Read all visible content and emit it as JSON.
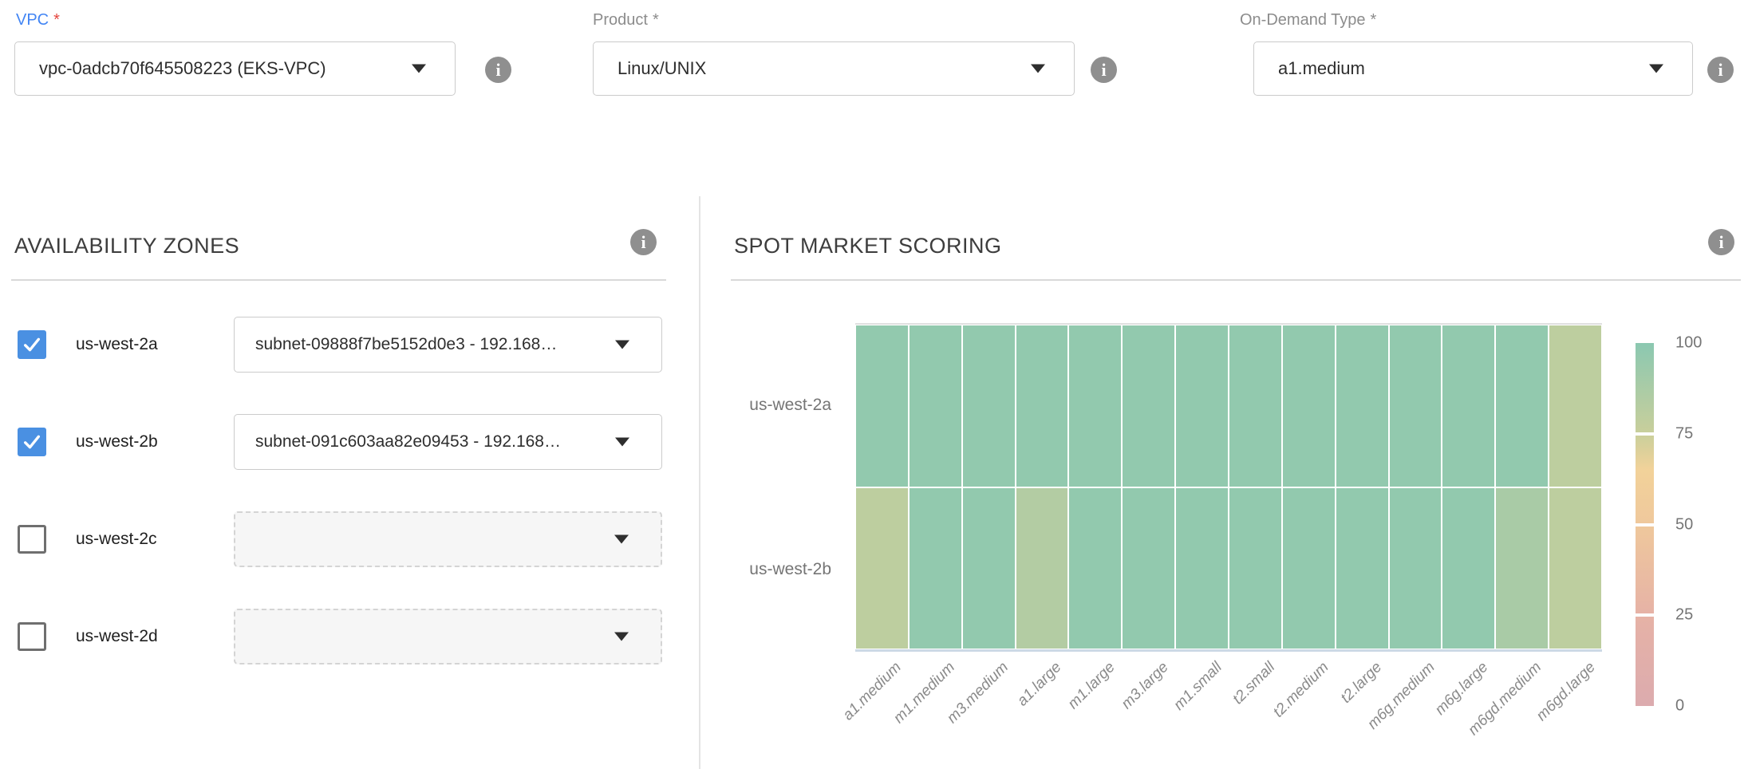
{
  "colors": {
    "accent_blue": "#4285f4",
    "required_red": "#e5453d",
    "checkbox_blue": "#4a90e2",
    "info_gray": "#8f8f8f"
  },
  "ui": {
    "info_glyph": "i"
  },
  "top_form": {
    "fields": [
      {
        "label": "VPC",
        "required_mark": "*",
        "value": "vpc-0adcb70f645508223 (EKS-VPC)"
      },
      {
        "label": "Product",
        "required_mark": "*",
        "value": "Linux/UNIX"
      },
      {
        "label": "On-Demand Type",
        "required_mark": "*",
        "value": "a1.medium"
      }
    ]
  },
  "availability_zones": {
    "title": "AVAILABILITY ZONES",
    "zones": [
      {
        "name": "us-west-2a",
        "checked": true,
        "subnet": "subnet-09888f7be5152d0e3 - 192.168…"
      },
      {
        "name": "us-west-2b",
        "checked": true,
        "subnet": "subnet-091c603aa82e09453 - 192.168…"
      },
      {
        "name": "us-west-2c",
        "checked": false,
        "subnet": ""
      },
      {
        "name": "us-west-2d",
        "checked": false,
        "subnet": ""
      }
    ]
  },
  "spot_market": {
    "title": "SPOT MARKET SCORING"
  },
  "chart_data": {
    "type": "heatmap",
    "title": "SPOT MARKET SCORING",
    "x_categories": [
      "a1.medium",
      "m1.medium",
      "m3.medium",
      "a1.large",
      "m1.large",
      "m3.large",
      "m1.small",
      "t2.small",
      "t2.medium",
      "t2.large",
      "m6g.medium",
      "m6g.large",
      "m6gd.medium",
      "m6gd.large"
    ],
    "y_categories": [
      "us-west-2a",
      "us-west-2b"
    ],
    "series": [
      {
        "name": "us-west-2a",
        "values": [
          97,
          97,
          97,
          97,
          97,
          97,
          97,
          97,
          97,
          97,
          97,
          97,
          97,
          80
        ]
      },
      {
        "name": "us-west-2b",
        "values": [
          80,
          97,
          97,
          84,
          97,
          97,
          97,
          97,
          97,
          97,
          97,
          97,
          88,
          80
        ]
      }
    ],
    "value_range": [
      0,
      100
    ],
    "colorbar_ticks": [
      100,
      75,
      50,
      25,
      0
    ],
    "color_scale": {
      "stops": [
        {
          "value": 0,
          "color": "#dcabae"
        },
        {
          "value": 25,
          "color": "#e6b2a6"
        },
        {
          "value": 50,
          "color": "#efc89c"
        },
        {
          "value": 65,
          "color": "#f2d29a"
        },
        {
          "value": 75,
          "color": "#c9cf9b"
        },
        {
          "value": 100,
          "color": "#8bc8b1"
        }
      ]
    },
    "legend_position": "right",
    "grid": false
  }
}
